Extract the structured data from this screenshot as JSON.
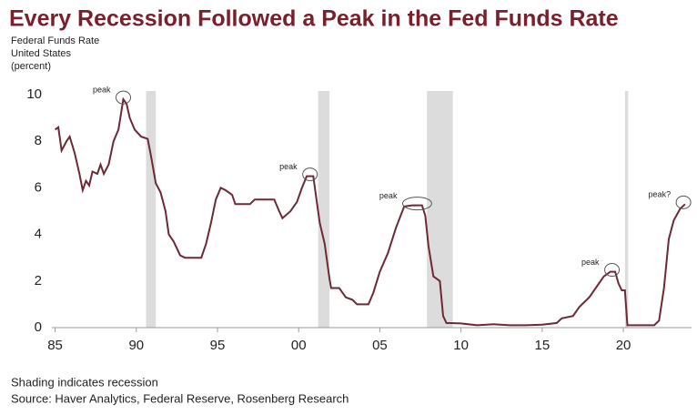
{
  "chart_data": {
    "type": "line",
    "title": "Every Recession Followed a Peak in the Fed Funds Rate",
    "subtitle": [
      "Federal Funds Rate",
      "United States",
      "(percent)"
    ],
    "footnotes": [
      "Shading indicates recession",
      "Source: Haver Analytics, Federal Reserve, Rosenberg Research"
    ],
    "color": "#6b2a35",
    "x": [
      1985,
      1985.2,
      1985.4,
      1985.7,
      1985.9,
      1986.2,
      1986.5,
      1986.7,
      1986.9,
      1987.1,
      1987.3,
      1987.6,
      1987.8,
      1988.0,
      1988.3,
      1988.6,
      1988.9,
      1989.2,
      1989.4,
      1989.6,
      1989.9,
      1990.3,
      1990.7,
      1990.9,
      1991.2,
      1991.5,
      1991.8,
      1992.0,
      1992.3,
      1992.7,
      1993.0,
      1993.5,
      1994.0,
      1994.3,
      1994.6,
      1994.9,
      1995.2,
      1995.5,
      1995.9,
      1996.1,
      1996.5,
      1997.0,
      1997.3,
      1998.0,
      1998.5,
      1998.8,
      1999.0,
      1999.5,
      1999.9,
      2000.2,
      2000.5,
      2000.9,
      2001.1,
      2001.3,
      2001.6,
      2001.9,
      2002.0,
      2002.5,
      2002.9,
      2003.3,
      2003.6,
      2004.3,
      2004.6,
      2005.0,
      2005.5,
      2006.0,
      2006.5,
      2007.0,
      2007.6,
      2007.8,
      2008.0,
      2008.3,
      2008.7,
      2008.9,
      2009.1,
      2010,
      2011,
      2012,
      2013,
      2014,
      2015,
      2015.9,
      2016.2,
      2016.9,
      2017.3,
      2017.9,
      2018.3,
      2018.8,
      2019.2,
      2019.5,
      2019.7,
      2019.9,
      2020.1,
      2020.25,
      2021.0,
      2021.9,
      2022.2,
      2022.5,
      2022.8,
      2023.1,
      2023.5,
      2023.8
    ],
    "values": [
      8.5,
      8.6,
      7.6,
      8.0,
      8.2,
      7.5,
      6.6,
      5.9,
      6.3,
      6.1,
      6.7,
      6.6,
      7.0,
      6.6,
      7.0,
      8.0,
      8.5,
      9.8,
      9.6,
      9.0,
      8.5,
      8.2,
      8.1,
      7.4,
      6.2,
      5.8,
      5.0,
      4.0,
      3.7,
      3.1,
      3.0,
      3.0,
      3.0,
      3.6,
      4.5,
      5.5,
      6.0,
      5.9,
      5.7,
      5.3,
      5.3,
      5.3,
      5.5,
      5.5,
      5.5,
      5.0,
      4.7,
      5.0,
      5.4,
      6.0,
      6.5,
      6.5,
      5.5,
      4.5,
      3.6,
      2.1,
      1.7,
      1.7,
      1.3,
      1.2,
      1.0,
      1.0,
      1.5,
      2.4,
      3.2,
      4.3,
      5.2,
      5.25,
      5.25,
      4.8,
      3.5,
      2.2,
      2.0,
      0.5,
      0.2,
      0.18,
      0.1,
      0.15,
      0.1,
      0.1,
      0.13,
      0.2,
      0.4,
      0.5,
      0.9,
      1.3,
      1.7,
      2.2,
      2.4,
      2.4,
      1.9,
      1.6,
      1.6,
      0.1,
      0.1,
      0.1,
      0.3,
      1.7,
      3.8,
      4.6,
      5.1,
      5.3
    ],
    "recessions": [
      [
        1990.6,
        1991.2
      ],
      [
        2001.2,
        2001.9
      ],
      [
        2007.9,
        2009.5
      ],
      [
        2020.1,
        2020.3
      ]
    ],
    "annotations": [
      {
        "text": "peak",
        "x": 1989.2,
        "y": 9.8
      },
      {
        "text": "peak",
        "x": 2000.7,
        "y": 6.5
      },
      {
        "text": "peak",
        "x": 2007.3,
        "y": 5.25
      },
      {
        "text": "peak",
        "x": 2019.3,
        "y": 2.4
      },
      {
        "text": "peak?",
        "x": 2023.7,
        "y": 5.3
      }
    ],
    "xlim": [
      1984.8,
      2024.2
    ],
    "xticks": [
      {
        "value": 1985,
        "label": "85"
      },
      {
        "value": 1990,
        "label": "90"
      },
      {
        "value": 1995,
        "label": "95"
      },
      {
        "value": 2000,
        "label": "00"
      },
      {
        "value": 2005,
        "label": "05"
      },
      {
        "value": 2010,
        "label": "10"
      },
      {
        "value": 2015,
        "label": "15"
      },
      {
        "value": 2020,
        "label": "20"
      }
    ],
    "ylim": [
      0,
      10
    ],
    "yticks": [
      0,
      2,
      4,
      6,
      8,
      10
    ]
  }
}
